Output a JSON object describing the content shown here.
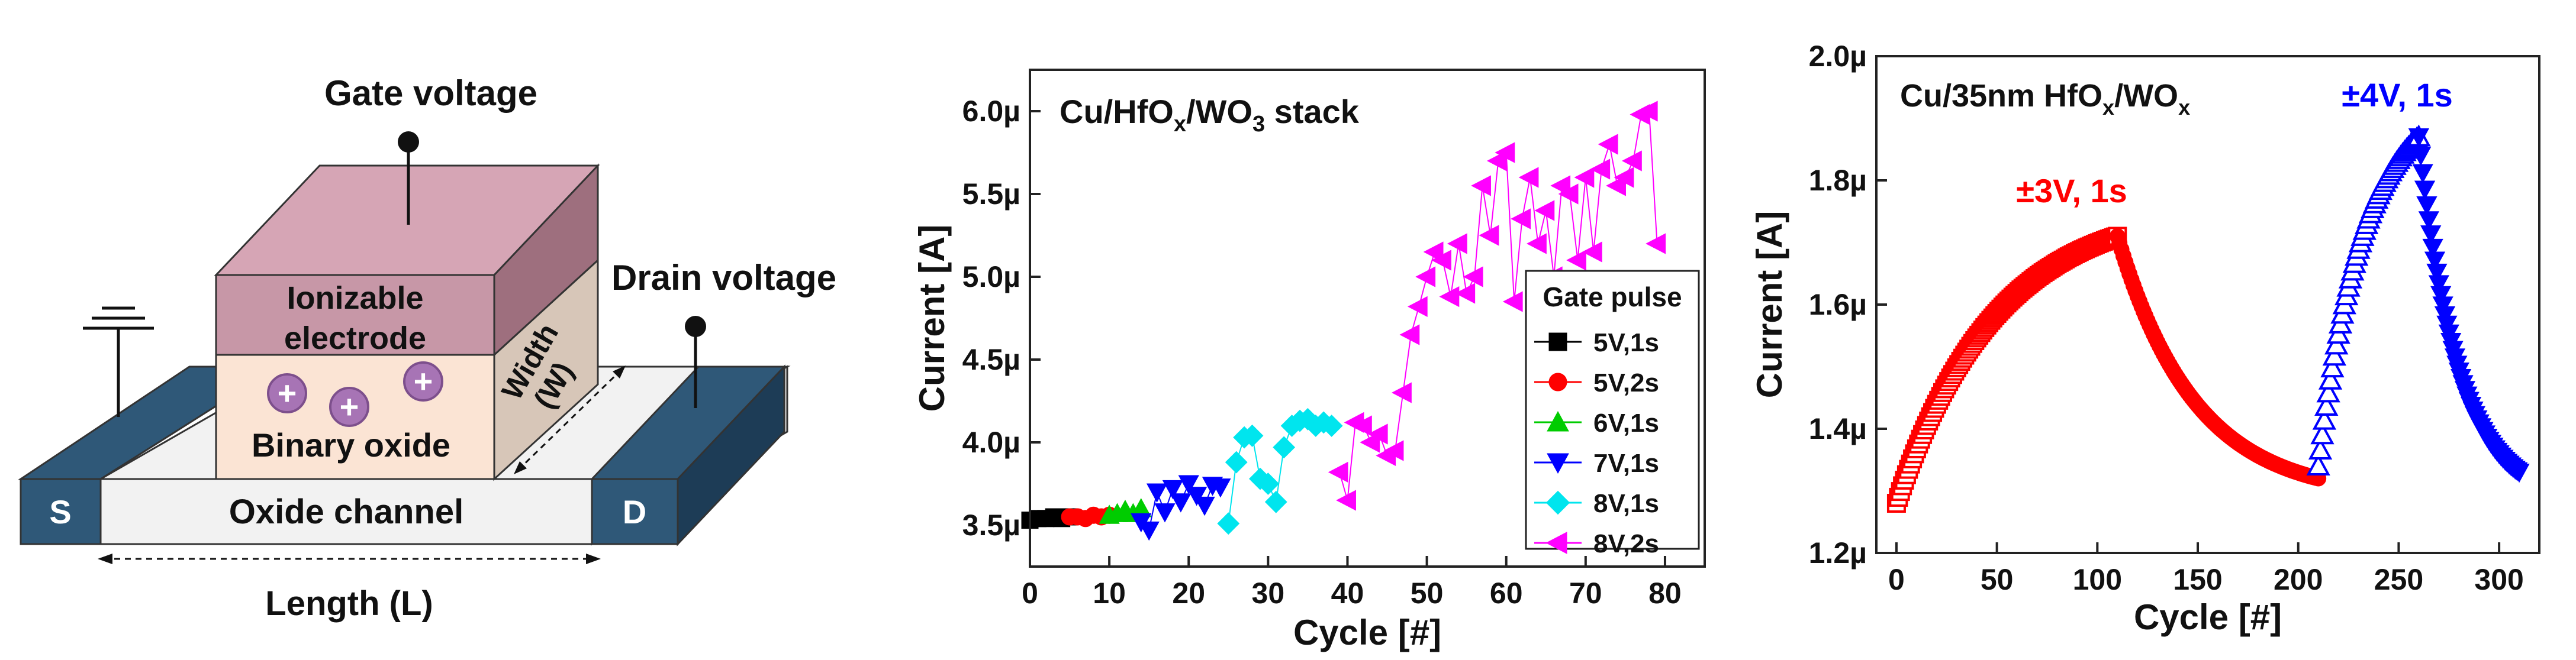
{
  "device": {
    "gate_label": "Gate voltage",
    "drain_label": "Drain voltage",
    "electrode_line1": "Ionizable",
    "electrode_line2": "electrode",
    "oxide_label": "Binary oxide",
    "channel_label": "Oxide channel",
    "source_label": "S",
    "drain_terminal_label": "D",
    "width_line1": "Width",
    "width_line2": "(W)",
    "length_label": "Length (L)",
    "ion_symbol": "+",
    "colors": {
      "electrode": "#d6a5b5",
      "electrode_side": "#9e6f7e",
      "oxide": "#fbe4d4",
      "oxide_side": "#d7c6b8",
      "terminal": "#2f5878",
      "terminal_side": "#1d3c56",
      "channel": "#f2f2f2",
      "ion": "#a774b5"
    }
  },
  "chart_data": [
    {
      "type": "scatter",
      "title": "",
      "annotation": "Cu/HfOx/WO3 stack",
      "xlabel": "Cycle [#]",
      "ylabel": "Current [A]",
      "xlim": [
        0,
        85
      ],
      "ylim": [
        3.25,
        6.25
      ],
      "xticks": [
        0,
        10,
        20,
        30,
        40,
        50,
        60,
        70,
        80
      ],
      "yticks": [
        3.5,
        4.0,
        4.5,
        5.0,
        5.5,
        6.0
      ],
      "yticklabels": [
        "3.5µ",
        "4.0µ",
        "4.5µ",
        "5.0µ",
        "5.5µ",
        "6.0µ"
      ],
      "legend_title": "Gate pulse",
      "legend_position": "bottom-right",
      "series": [
        {
          "name": "5V,1s",
          "color": "#000000",
          "marker": "square",
          "x": [
            0,
            1,
            2,
            3,
            4,
            5
          ],
          "y": [
            3.53,
            3.54,
            3.54,
            3.55,
            3.54,
            3.55
          ]
        },
        {
          "name": "5V,2s",
          "color": "#ff0000",
          "marker": "circle",
          "x": [
            5,
            6,
            7,
            8,
            9,
            10
          ],
          "y": [
            3.55,
            3.55,
            3.54,
            3.56,
            3.55,
            3.56
          ]
        },
        {
          "name": "6V,1s",
          "color": "#00cc00",
          "marker": "triangle-up",
          "x": [
            10,
            11,
            12,
            13,
            14
          ],
          "y": [
            3.56,
            3.57,
            3.59,
            3.57,
            3.6
          ]
        },
        {
          "name": "7V,1s",
          "color": "#0000ff",
          "marker": "triangle-down",
          "x": [
            14,
            15,
            16,
            17,
            18,
            19,
            20,
            21,
            22,
            23,
            24
          ],
          "y": [
            3.52,
            3.47,
            3.7,
            3.58,
            3.72,
            3.64,
            3.75,
            3.68,
            3.62,
            3.74,
            3.73
          ]
        },
        {
          "name": "8V,1s",
          "color": "#00e5ee",
          "marker": "diamond",
          "x": [
            25,
            26,
            27,
            28,
            29,
            30,
            31,
            32,
            33,
            34,
            35,
            36,
            37,
            38
          ],
          "y": [
            3.51,
            3.88,
            4.03,
            4.04,
            3.78,
            3.75,
            3.64,
            3.97,
            4.1,
            4.13,
            4.14,
            4.1,
            4.12,
            4.1
          ]
        },
        {
          "name": "8V,2s",
          "color": "#ff00ff",
          "marker": "triangle-left",
          "x": [
            39,
            40,
            41,
            42,
            43,
            44,
            45,
            46,
            47,
            48,
            49,
            50,
            51,
            52,
            53,
            54,
            55,
            56,
            57,
            58,
            59,
            60,
            61,
            62,
            63,
            64,
            65,
            66,
            67,
            68,
            69,
            70,
            71,
            72,
            73,
            74,
            75,
            76,
            77,
            78,
            79
          ],
          "y": [
            3.82,
            3.65,
            4.12,
            4.1,
            4.0,
            4.05,
            3.92,
            3.95,
            4.3,
            4.65,
            4.82,
            5.0,
            5.15,
            5.1,
            4.88,
            5.2,
            4.9,
            5.0,
            5.55,
            5.25,
            5.7,
            5.75,
            4.85,
            5.35,
            5.6,
            5.2,
            5.4,
            5.0,
            5.55,
            5.5,
            5.1,
            5.6,
            5.15,
            5.65,
            5.8,
            5.55,
            5.6,
            5.7,
            5.98,
            6.0,
            5.2
          ]
        }
      ]
    },
    {
      "type": "scatter",
      "title": "",
      "annotation_parts": [
        "Cu/35nm HfO",
        "x",
        "/WO",
        "x"
      ],
      "xlabel": "Cycle [#]",
      "ylabel": "Current [A]",
      "xlim": [
        -10,
        320
      ],
      "ylim": [
        1.2,
        2.0
      ],
      "xticks": [
        0,
        50,
        100,
        150,
        200,
        250,
        300
      ],
      "yticks": [
        1.2,
        1.4,
        1.6,
        1.8,
        2.0
      ],
      "yticklabels": [
        "1.2µ",
        "1.4µ",
        "1.6µ",
        "1.8µ",
        "2.0µ"
      ],
      "annotations": [
        {
          "text": "±3V, 1s",
          "color": "#ff0000"
        },
        {
          "text": "±4V, 1s",
          "color": "#0000ff"
        }
      ],
      "series": [
        {
          "phase": "potentiation",
          "pulse": "±3V, 1s",
          "color": "#ff0000",
          "marker": "square-open",
          "x_start": 0,
          "x_end": 110,
          "y_start": 1.28,
          "y_end": 1.71
        },
        {
          "phase": "depression",
          "pulse": "±3V, 1s",
          "color": "#ff0000",
          "marker": "circle",
          "x_start": 110,
          "x_end": 210,
          "y_start": 1.71,
          "y_end": 1.32
        },
        {
          "phase": "potentiation",
          "pulse": "±4V, 1s",
          "color": "#0000ff",
          "marker": "triangle-up-open",
          "x_start": 210,
          "x_end": 260,
          "y_start": 1.34,
          "y_end": 1.87
        },
        {
          "phase": "depression",
          "pulse": "±4V, 1s",
          "color": "#0000ff",
          "marker": "triangle-down",
          "x_start": 260,
          "x_end": 310,
          "y_start": 1.87,
          "y_end": 1.33
        }
      ]
    }
  ]
}
